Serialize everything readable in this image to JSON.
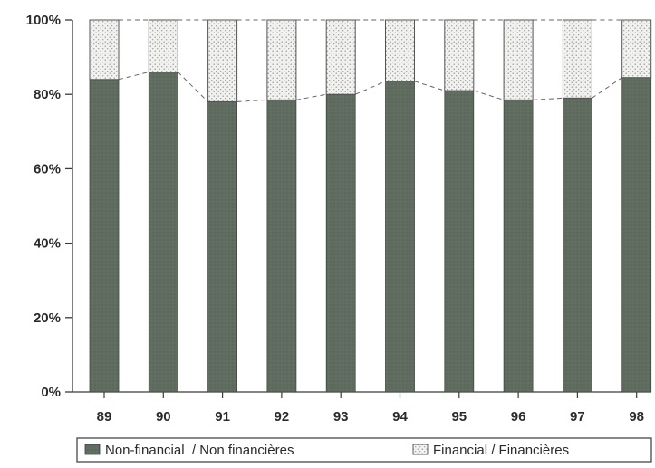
{
  "chart_data": {
    "type": "bar",
    "stacked": true,
    "percent": true,
    "categories": [
      "89",
      "90",
      "91",
      "92",
      "93",
      "94",
      "95",
      "96",
      "97",
      "98"
    ],
    "series": [
      {
        "name": "Non-financial  / Non financières",
        "values": [
          84,
          86,
          78,
          78.5,
          80,
          83.5,
          81,
          78.5,
          79,
          84.5
        ],
        "color": "#5e6b5e",
        "pattern": "solid-dark"
      },
      {
        "name": "Financial / Financières",
        "values": [
          16,
          14,
          22,
          21.5,
          20,
          16.5,
          19,
          21.5,
          21,
          15.5
        ],
        "color": "#e6e6e6",
        "pattern": "dotted"
      }
    ],
    "y_ticks": [
      "0%",
      "20%",
      "40%",
      "60%",
      "80%",
      "100%"
    ],
    "ylim": [
      0,
      100
    ],
    "title": "",
    "xlabel": "",
    "ylabel": "",
    "grid": false,
    "legend_position": "bottom",
    "connector_lines": "dashed"
  }
}
